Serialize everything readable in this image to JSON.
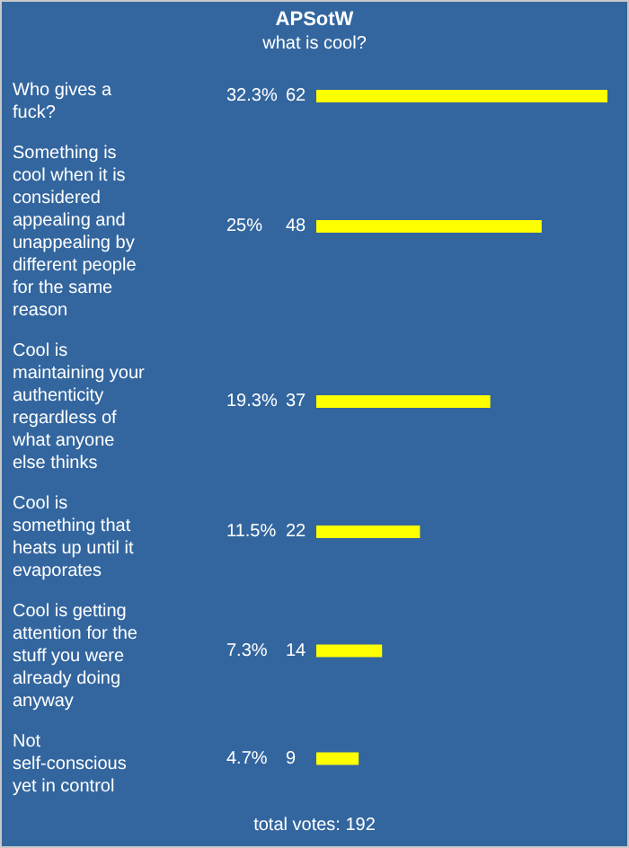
{
  "chart_data": {
    "type": "bar",
    "orientation": "horizontal",
    "title": "APSotW",
    "subtitle": "what is cool?",
    "categories": [
      "Who gives a fuck?",
      "Something is cool when it is considered appealing and unappealing by different people for the same reason",
      "Cool is maintaining your authenticity regardless of what anyone else thinks",
      "Cool is something that heats up until it evaporates",
      "Cool is getting attention for the stuff you were already doing anyway",
      "Not self-conscious yet in control"
    ],
    "values": [
      32.3,
      25,
      19.3,
      11.5,
      7.3,
      4.7
    ],
    "value_labels": [
      "32.3%",
      "25%",
      "19.3%",
      "11.5%",
      "7.3%",
      "4.7%"
    ],
    "color": "#ffff00",
    "annotations": [
      "62",
      "48",
      "37",
      "22",
      "14",
      "9",
      "total votes: 192"
    ]
  }
}
